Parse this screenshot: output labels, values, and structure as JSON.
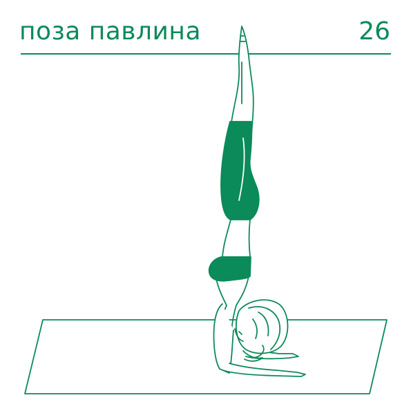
{
  "header": {
    "title": "поза павлина",
    "page_number": "26"
  },
  "colors": {
    "accent": "#0b8a5a",
    "background": "#ffffff"
  }
}
